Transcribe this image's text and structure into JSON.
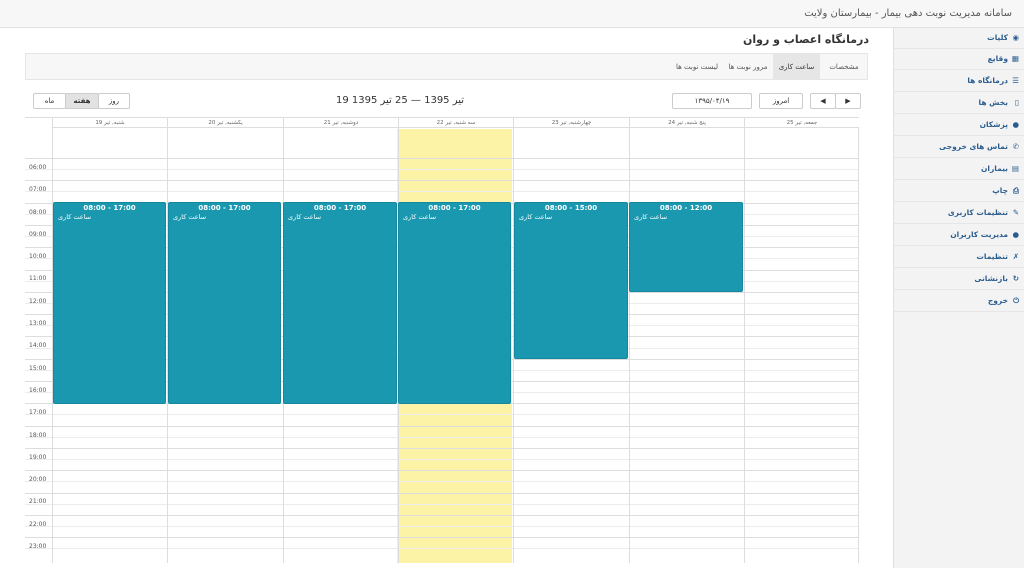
{
  "header": {
    "title": "سامانه مدیریت نوبت دهی بیمار - بیمارستان ولایت"
  },
  "sidebar": {
    "items": [
      {
        "label": "کلیات",
        "icon": "dashboard-icon"
      },
      {
        "label": "وقایع",
        "icon": "table-icon"
      },
      {
        "label": "درمانگاه ها",
        "icon": "list-icon"
      },
      {
        "label": "بخش ها",
        "icon": "mobile-icon"
      },
      {
        "label": "پزشکان",
        "icon": "user-icon"
      },
      {
        "label": "تماس های خروجی",
        "icon": "phone-icon"
      },
      {
        "label": "بیماران",
        "icon": "list-alt-icon"
      },
      {
        "label": "چاپ",
        "icon": "print-icon"
      },
      {
        "label": "تنظیمات کاربری",
        "icon": "edit-icon"
      },
      {
        "label": "مدیریت کاربران",
        "icon": "users-icon"
      },
      {
        "label": "تنظیمات",
        "icon": "wrench-icon"
      },
      {
        "label": "بازنشانی",
        "icon": "refresh-icon"
      },
      {
        "label": "خروج",
        "icon": "power-icon"
      }
    ]
  },
  "main": {
    "title": "درمانگاه اعصاب و روان",
    "tabs": [
      {
        "label": "مشخصات"
      },
      {
        "label": "ساعت کاری"
      },
      {
        "label": "مرور نوبت ها"
      },
      {
        "label": "لیست نوبت ها"
      }
    ]
  },
  "toolbar": {
    "views": {
      "month": "ماه",
      "week": "هفته",
      "day": "روز"
    },
    "range": "19 تیر 1395 — 25 تیر 1395",
    "date_value": "۱۳۹۵/۰۴/۱۹",
    "today": "امروز",
    "prev_icon": "◀",
    "next_icon": "▶"
  },
  "calendar": {
    "days": [
      "شنبه, تیر 19",
      "یکشنبه, تیر 20",
      "دوشنبه, تیر 21",
      "سه شنبه, تیر 22",
      "چهارشنبه, تیر 23",
      "پنج شنبه, تیر 24",
      "جمعه, تیر 25"
    ],
    "hours": [
      "06:00",
      "07:00",
      "08:00",
      "09:00",
      "10:00",
      "11:00",
      "12:00",
      "13:00",
      "14:00",
      "15:00",
      "16:00",
      "17:00",
      "18:00",
      "19:00",
      "20:00",
      "21:00",
      "22:00",
      "23:00"
    ],
    "today_index": 3,
    "events": [
      {
        "day": 0,
        "start": 8,
        "end": 17,
        "time": "08:00 - 17:00",
        "label": "ساعت کاری"
      },
      {
        "day": 1,
        "start": 8,
        "end": 17,
        "time": "08:00 - 17:00",
        "label": "ساعت کاری"
      },
      {
        "day": 2,
        "start": 8,
        "end": 17,
        "time": "08:00 - 17:00",
        "label": "ساعت کاری"
      },
      {
        "day": 3,
        "start": 8,
        "end": 17,
        "time": "08:00 - 17:00",
        "label": "ساعت کاری"
      },
      {
        "day": 4,
        "start": 8,
        "end": 15,
        "time": "08:00 - 15:00",
        "label": "ساعت کاری"
      },
      {
        "day": 5,
        "start": 8,
        "end": 12,
        "time": "08:00 - 12:00",
        "label": "ساعت کاری"
      }
    ],
    "colors": {
      "event": "#1a98b0",
      "today": "#fcf3a6"
    }
  }
}
